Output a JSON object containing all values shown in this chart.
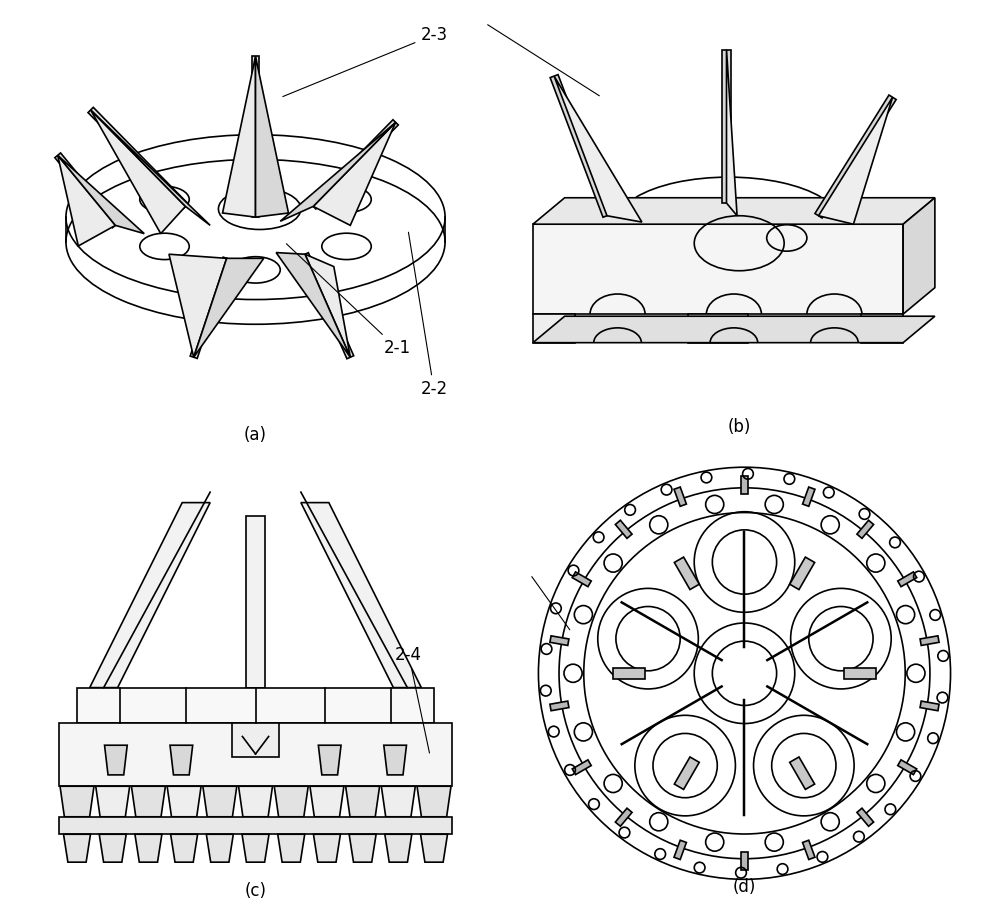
{
  "bg_color": "#ffffff",
  "line_color": "#000000",
  "line_width": 1.2,
  "label_a": "(a)",
  "label_b": "(b)",
  "label_c": "(c)",
  "label_d": "(d)",
  "annot_21": "2-1",
  "annot_22": "2-2",
  "annot_23": "2-3",
  "annot_24": "2-4",
  "font_size": 12
}
